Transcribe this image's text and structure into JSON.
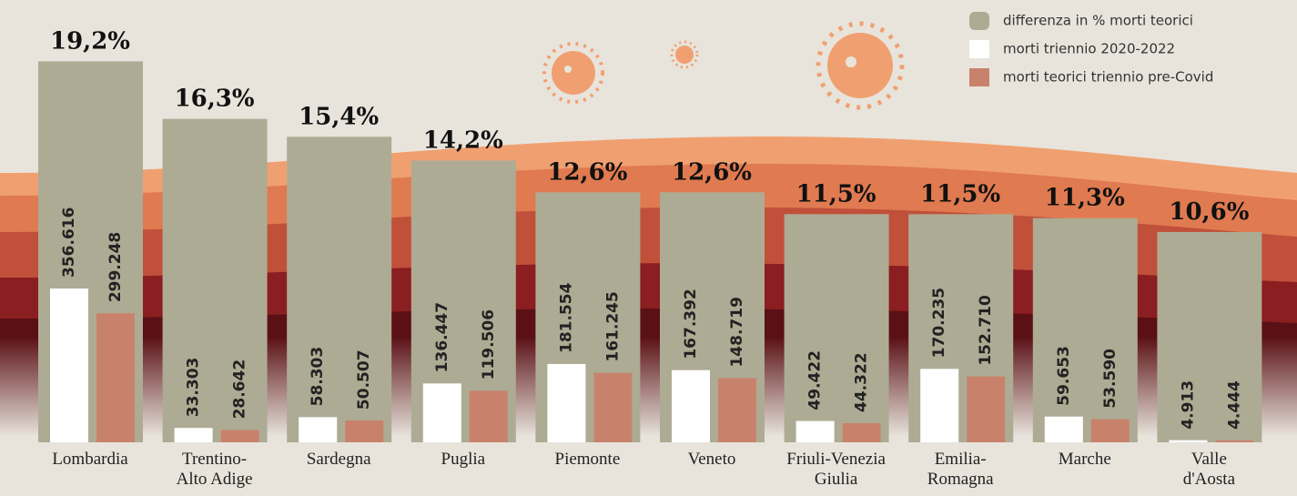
{
  "chart_data": {
    "type": "bar",
    "categories": [
      "Lombardia",
      "Trentino-\nAlto Adige",
      "Sardegna",
      "Puglia",
      "Piemonte",
      "Veneto",
      "Friuli-Venezia\nGiulia",
      "Emilia-\nRomagna",
      "Marche",
      "Valle\nd'Aosta"
    ],
    "series": [
      {
        "name": "differenza in % morti teorici",
        "color": "#aeab94",
        "values": [
          19.2,
          16.3,
          15.4,
          14.2,
          12.6,
          12.6,
          11.5,
          11.5,
          11.3,
          10.6
        ],
        "value_labels": [
          "19,2%",
          "16,3%",
          "15,4%",
          "14,2%",
          "12,6%",
          "12,6%",
          "11,5%",
          "11,5%",
          "11,3%",
          "10,6%"
        ]
      },
      {
        "name": "morti triennio 2020-2022",
        "color": "#ffffff",
        "values": [
          356616,
          33303,
          58303,
          136447,
          181554,
          167392,
          49422,
          170235,
          59653,
          4913
        ],
        "value_labels": [
          "356.616",
          "33.303",
          "58.303",
          "136.447",
          "181.554",
          "167.392",
          "49.422",
          "170.235",
          "59.653",
          "4.913"
        ]
      },
      {
        "name": "morti teorici triennio pre-Covid",
        "color": "#c8826c",
        "values": [
          299248,
          28642,
          50507,
          119506,
          161245,
          148719,
          44322,
          152710,
          53590,
          4444
        ],
        "value_labels": [
          "299.248",
          "28.642",
          "50.507",
          "119.506",
          "161.245",
          "148.719",
          "44.322",
          "152.710",
          "53.590",
          "4.444"
        ]
      }
    ]
  }
}
